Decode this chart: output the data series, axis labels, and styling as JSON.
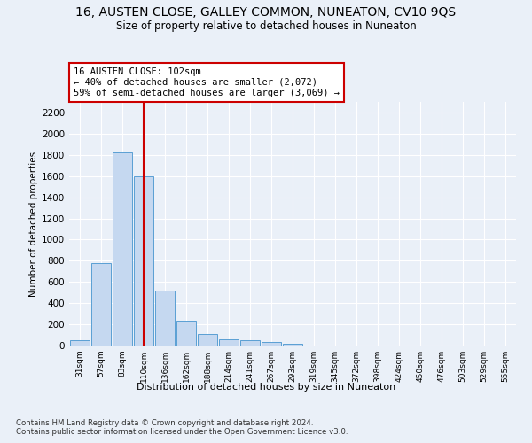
{
  "title1": "16, AUSTEN CLOSE, GALLEY COMMON, NUNEATON, CV10 9QS",
  "title2": "Size of property relative to detached houses in Nuneaton",
  "xlabel": "Distribution of detached houses by size in Nuneaton",
  "ylabel": "Number of detached properties",
  "bins": [
    "31sqm",
    "57sqm",
    "83sqm",
    "110sqm",
    "136sqm",
    "162sqm",
    "188sqm",
    "214sqm",
    "241sqm",
    "267sqm",
    "293sqm",
    "319sqm",
    "345sqm",
    "372sqm",
    "398sqm",
    "424sqm",
    "450sqm",
    "476sqm",
    "503sqm",
    "529sqm",
    "555sqm"
  ],
  "bar_heights": [
    50,
    780,
    1820,
    1600,
    520,
    235,
    110,
    55,
    50,
    30,
    15,
    0,
    0,
    0,
    0,
    0,
    0,
    0,
    0,
    0,
    0
  ],
  "bar_color": "#c5d8f0",
  "bar_edgecolor": "#5a9fd4",
  "vline_color": "#cc0000",
  "annotation_text": "16 AUSTEN CLOSE: 102sqm\n← 40% of detached houses are smaller (2,072)\n59% of semi-detached houses are larger (3,069) →",
  "annotation_box_color": "#cc0000",
  "ylim": [
    0,
    2300
  ],
  "yticks": [
    0,
    200,
    400,
    600,
    800,
    1000,
    1200,
    1400,
    1600,
    1800,
    2000,
    2200
  ],
  "footnote": "Contains HM Land Registry data © Crown copyright and database right 2024.\nContains public sector information licensed under the Open Government Licence v3.0.",
  "bg_color": "#eaf0f8",
  "plot_bg_color": "#eaf0f8",
  "grid_color": "#ffffff",
  "title1_fontsize": 10,
  "title2_fontsize": 8.5
}
